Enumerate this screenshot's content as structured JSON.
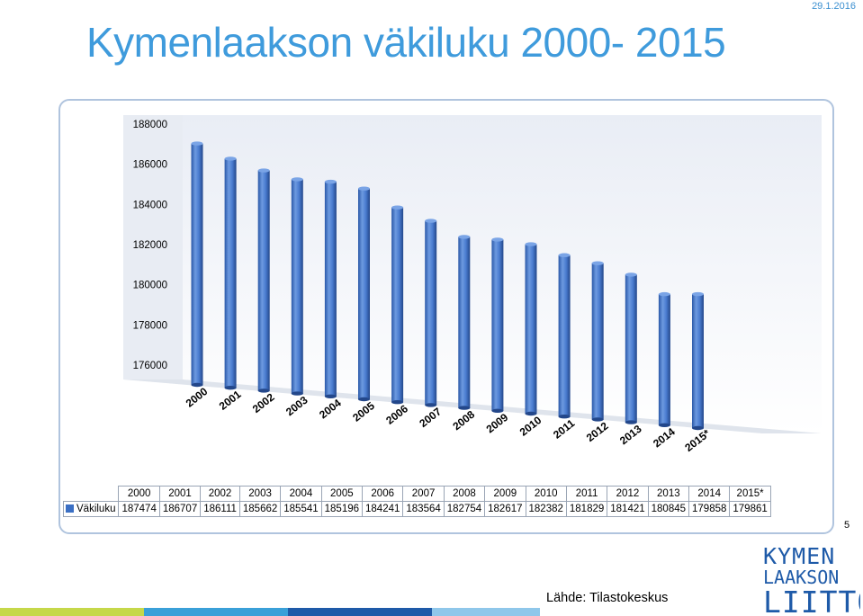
{
  "header": {
    "title": "Kymenlaakson väkiluku 2000- 2015",
    "date": "29.1.2016"
  },
  "chart_data": {
    "type": "bar",
    "categories": [
      "2000",
      "2001",
      "2002",
      "2003",
      "2004",
      "2005",
      "2006",
      "2007",
      "2008",
      "2009",
      "2010",
      "2011",
      "2012",
      "2013",
      "2014",
      "2015*"
    ],
    "series": [
      {
        "name": "Väkiluku",
        "values": [
          187474,
          186707,
          186111,
          185662,
          185541,
          185196,
          184241,
          183564,
          182754,
          182617,
          182382,
          181829,
          181421,
          180845,
          179858,
          179861
        ]
      }
    ],
    "yticks": [
      "188000",
      "186000",
      "184000",
      "182000",
      "180000",
      "178000",
      "176000"
    ],
    "ylim": [
      176000,
      188000
    ],
    "series_color": "#3a6fc4",
    "grid": false,
    "legend": "table-row",
    "style": "3d-cylinder"
  },
  "footer": {
    "page_number": "5",
    "source": "Lähde: Tilastokeskus",
    "logo_lines": [
      "KYMEN",
      "LAAKSON",
      "LIITTO"
    ],
    "bar_colors": [
      "#c6d84a",
      "#3aa0d8",
      "#1e5aa8",
      "#8fc7ea"
    ]
  }
}
